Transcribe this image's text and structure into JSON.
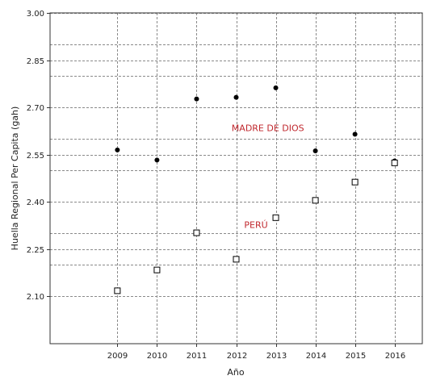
{
  "chart_data": {
    "type": "scatter",
    "title": "",
    "xlabel": "Año",
    "ylabel": "Huella Regional Per Capita (gah)",
    "x": [
      2009,
      2010,
      2011,
      2012,
      2013,
      2014,
      2015,
      2016
    ],
    "xlim": [
      2007.3,
      2016.7
    ],
    "ylim": [
      1.95,
      3.0
    ],
    "yticks": [
      "2.10",
      "2.25",
      "2.40",
      "2.55",
      "2.70",
      "2.85",
      "3.00"
    ],
    "ytick_values": [
      2.1,
      2.25,
      2.4,
      2.55,
      2.7,
      2.85,
      3.0
    ],
    "extra_hgrid": [
      2.2,
      2.3,
      2.5,
      2.6,
      2.8,
      2.9
    ],
    "grid": true,
    "legend": "none",
    "series": [
      {
        "name": "MADRE DE DIOS",
        "marker": "filled-circle",
        "color": "#000000",
        "values": [
          2.565,
          2.533,
          2.727,
          2.732,
          2.762,
          2.562,
          2.615,
          2.53
        ]
      },
      {
        "name": "PERÚ",
        "marker": "open-square",
        "color": "#000000",
        "values": [
          2.118,
          2.184,
          2.302,
          2.218,
          2.35,
          2.405,
          2.463,
          2.524
        ]
      }
    ],
    "annotations": [
      {
        "text": "MADRE DE DIOS",
        "x": 2012.8,
        "y": 2.625,
        "color": "#c0272d"
      },
      {
        "text": "PERÚ",
        "x": 2012.5,
        "y": 2.317,
        "color": "#c0272d"
      }
    ]
  }
}
